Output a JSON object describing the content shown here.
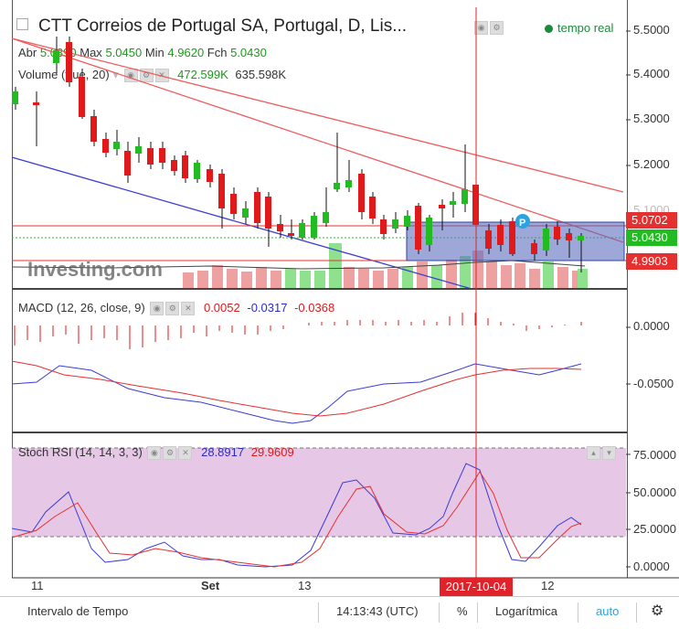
{
  "chart": {
    "title": "CTT Correios de Portugal SA, Portugal, D, Lis...",
    "live_label": "tempo real",
    "ohlc": {
      "open_label": "Abr",
      "open": "5.0390",
      "high_label": "Max",
      "high": "5.0450",
      "low_label": "Min",
      "low": "4.9620",
      "close_label": "Fch",
      "close": "5.0430"
    },
    "volume_label": "Volume (true, 20)",
    "volume_value": "472.599K",
    "volume_ma": "635.598K",
    "watermark": "Investing.com",
    "price_axis": [
      "5.5000",
      "5.4000",
      "5.3000",
      "5.2000",
      "5.1000"
    ],
    "price_tags": {
      "upper": "5.0702",
      "last": "5.0430",
      "lower": "4.9903"
    }
  },
  "macd": {
    "label": "MACD (12, 26, close, 9)",
    "values": [
      "0.0052",
      "-0.0317",
      "-0.0368"
    ],
    "axis": [
      "0.0000",
      "-0.0500"
    ]
  },
  "stoch": {
    "label": "Stoch RSI (14, 14, 3, 3)",
    "values": [
      "28.8917",
      "29.9609"
    ],
    "axis": [
      "75.0000",
      "50.0000",
      "25.0000",
      "0.0000"
    ]
  },
  "date_axis": {
    "labels": [
      "11",
      "Set",
      "13",
      "12"
    ],
    "cursor_date": "2017-10-04"
  },
  "bottom_bar": {
    "interval": "Intervalo de Tempo",
    "time": "14:13:43 (UTC)",
    "percent": "%",
    "log": "Logarítmica",
    "auto": "auto",
    "gear": "⚙"
  },
  "colors": {
    "up": "#22bb22",
    "down": "#e01a1a",
    "trend_red": "#f05a5a",
    "trend_blue": "#3b3bd6",
    "stoch_fill": "#e6c7e6",
    "cursor": "#e0222a"
  }
}
